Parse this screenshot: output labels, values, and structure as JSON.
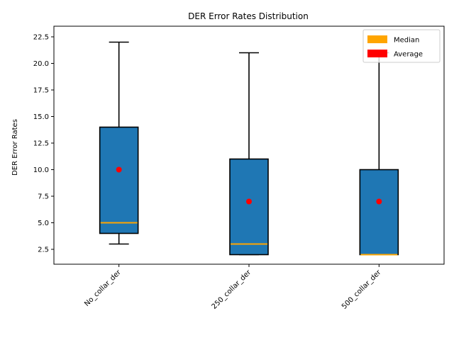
{
  "chart_data": {
    "type": "box",
    "title": "DER Error Rates Distribution",
    "xlabel": "",
    "ylabel": "DER Error Rates",
    "ylim": [
      1.1,
      23.5
    ],
    "yticks": [
      2.5,
      5.0,
      7.5,
      10.0,
      12.5,
      15.0,
      17.5,
      20.0,
      22.5
    ],
    "ytick_labels": [
      "2.5",
      "5.0",
      "7.5",
      "10.0",
      "12.5",
      "15.0",
      "17.5",
      "20.0",
      "22.5"
    ],
    "categories": [
      "No_collar_der",
      "250_collar_der",
      "500_collar_der"
    ],
    "boxes": [
      {
        "whisker_low": 3,
        "q1": 4,
        "median": 5,
        "q3": 14,
        "whisker_high": 22,
        "mean": 10
      },
      {
        "whisker_low": 2,
        "q1": 2,
        "median": 3,
        "q3": 11,
        "whisker_high": 21,
        "mean": 7
      },
      {
        "whisker_low": 2,
        "q1": 2,
        "median": 2,
        "q3": 10,
        "whisker_high": 21,
        "mean": 7
      }
    ],
    "legend": {
      "position": "top-right",
      "items": [
        {
          "label": "Median",
          "color": "#ffa500"
        },
        {
          "label": "Average",
          "color": "#ff0000"
        }
      ]
    },
    "colors": {
      "box_fill": "#1f77b4",
      "box_edge": "#000000",
      "median": "#ffa500",
      "mean": "#ff0000"
    },
    "grid": false
  }
}
